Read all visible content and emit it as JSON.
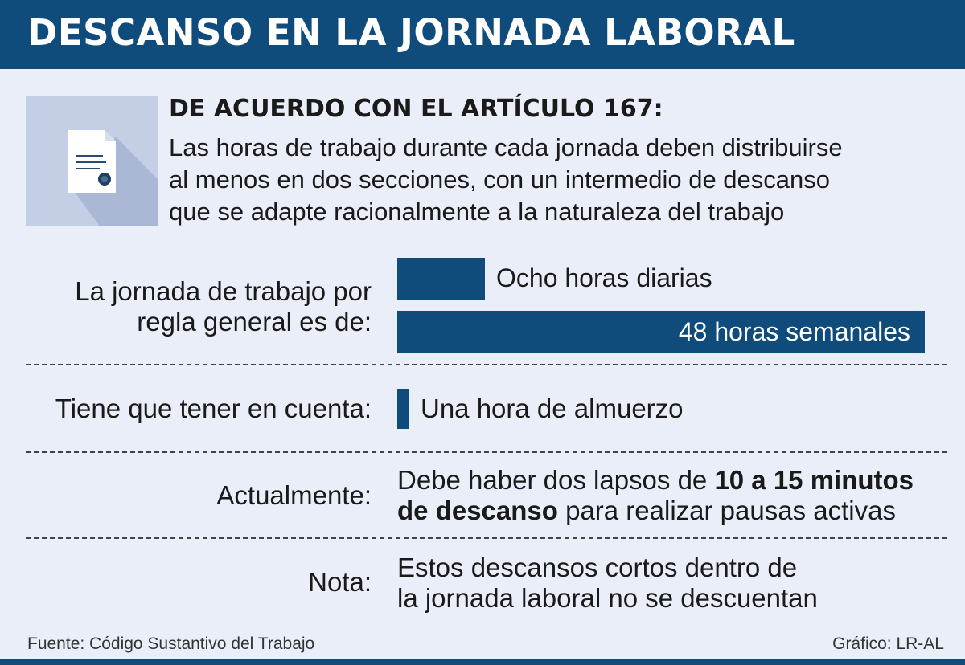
{
  "header": {
    "title": "DESCANSO EN LA JORNADA LABORAL"
  },
  "article": {
    "title": "DE ACUERDO CON EL ARTÍCULO 167:",
    "lines": [
      "Las horas de trabajo durante cada jornada deben distribuirse",
      "al menos en dos secciones, con un intermedio de descanso",
      "que se adapte racionalmente a la naturaleza del trabajo"
    ],
    "icon": "document-icon"
  },
  "jornada": {
    "label_line1": "La jornada de trabajo por",
    "label_line2": "regla general es de:",
    "daily": {
      "label": "Ocho horas diarias",
      "hours": 8
    },
    "weekly": {
      "label": "48 horas semanales",
      "hours": 48
    },
    "color": "#0f4c7c"
  },
  "cuenta": {
    "label": "Tiene que tener en cuenta:",
    "value": "Una hora de almuerzo",
    "hours": 1
  },
  "actualmente": {
    "label": "Actualmente:",
    "line1_pre": "Debe haber dos lapsos de ",
    "line1_bold": "10 a 15 minutos",
    "line2_bold": "de descanso",
    "line2_post": " para realizar pausas activas"
  },
  "nota": {
    "label": "Nota:",
    "line1": "Estos descansos cortos dentro de",
    "line2": "la jornada laboral no se descuentan"
  },
  "footer": {
    "source": "Fuente: Código Sustantivo del Trabajo",
    "credit": "Gráfico: LR-AL"
  },
  "colors": {
    "accent": "#0f4c7c",
    "background": "#e9eef8"
  }
}
